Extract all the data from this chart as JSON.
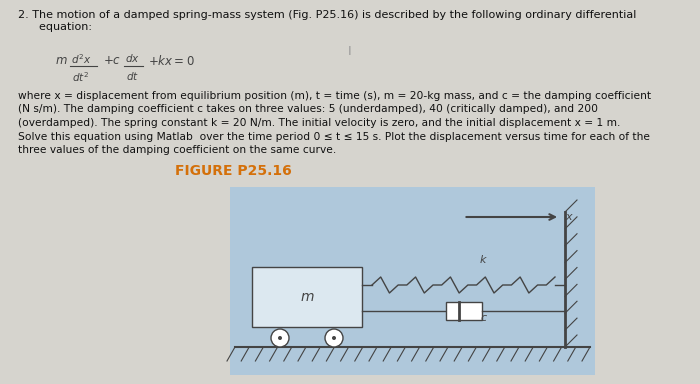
{
  "background_color": "#d6d4ce",
  "title_line1": "2. The motion of a damped spring-mass system (Fig. P25.16) is described by the following ordinary differential",
  "title_line2": "      equation:",
  "cursor_char": "I",
  "body_lines": [
    "where x = displacement from equilibrium position (m), t = time (s), m = 20-kg mass, and c = the damping coefficient",
    "(N s/m). The damping coefficient c takes on three values: 5 (underdamped), 40 (critically damped), and 200",
    "(overdamped). The spring constant k = 20 N/m. The initial velocity is zero, and the initial displacement x = 1 m.",
    "Solve this equation using Matlab  over the time period 0 ≤ t ≤ 15 s. Plot the displacement versus time for each of the",
    "three values of the damping coefficient on the same curve."
  ],
  "figure_label": "FIGURE P25.16",
  "figure_label_color": "#d4700a",
  "diagram_bg": "#afc8db",
  "text_color": "#111111",
  "line_color": "#444444",
  "mass_fill": "#dce8f0",
  "wall_fill": "#888888",
  "white": "#ffffff"
}
